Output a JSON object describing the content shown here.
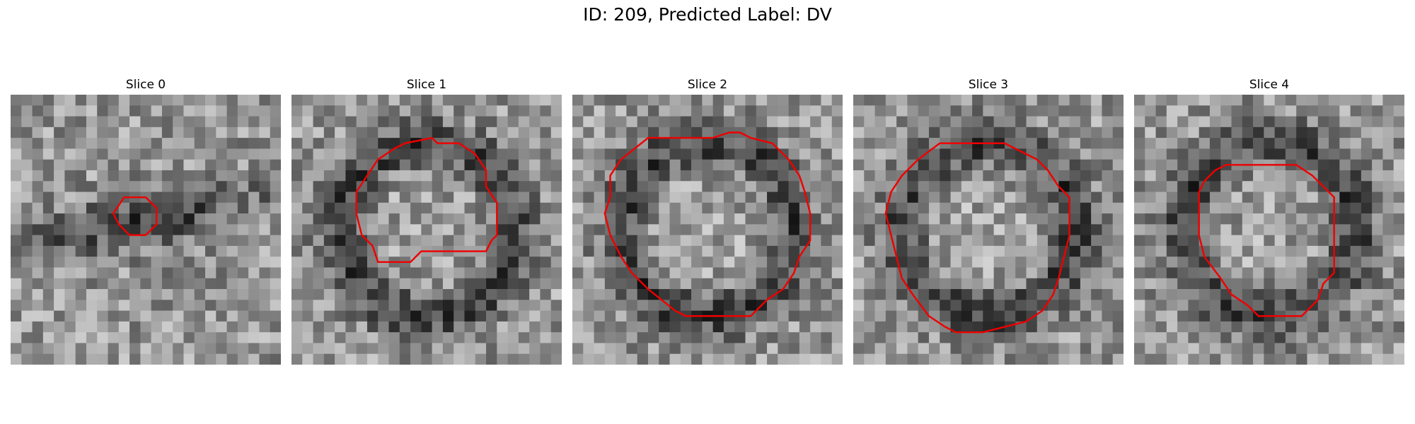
{
  "figure": {
    "title": "ID: 209, Predicted Label: DV"
  },
  "panels": [
    {
      "title": "Slice 0",
      "seed": 11,
      "contour": "darkband",
      "shape": [
        [
          10.5,
          9.5
        ],
        [
          12.5,
          9.5
        ],
        [
          13.5,
          10.5
        ],
        [
          13.5,
          12.0
        ],
        [
          12.5,
          13.0
        ],
        [
          11.0,
          13.0
        ],
        [
          10.0,
          12.0
        ],
        [
          9.5,
          11.0
        ]
      ]
    },
    {
      "title": "Slice 1",
      "seed": 23,
      "contour": "ring",
      "shape": [
        [
          10.5,
          4.5
        ],
        [
          13.0,
          4.0
        ],
        [
          13.5,
          4.5
        ],
        [
          15.5,
          4.5
        ],
        [
          17.0,
          5.5
        ],
        [
          18.0,
          7.0
        ],
        [
          18.0,
          8.5
        ],
        [
          19.0,
          10.0
        ],
        [
          19.0,
          13.0
        ],
        [
          18.5,
          13.5
        ],
        [
          18.0,
          14.5
        ],
        [
          12.0,
          14.5
        ],
        [
          11.5,
          15.0
        ],
        [
          11.0,
          15.5
        ],
        [
          8.0,
          15.5
        ],
        [
          7.5,
          14.0
        ],
        [
          6.5,
          13.0
        ],
        [
          6.0,
          11.0
        ],
        [
          6.0,
          9.0
        ],
        [
          7.0,
          7.5
        ],
        [
          8.0,
          6.0
        ],
        [
          9.5,
          5.0
        ]
      ]
    },
    {
      "title": "Slice 2",
      "seed": 37,
      "contour": "ring",
      "shape": [
        [
          9.5,
          4.0
        ],
        [
          13.0,
          4.0
        ],
        [
          14.5,
          3.5
        ],
        [
          15.5,
          3.5
        ],
        [
          16.5,
          4.0
        ],
        [
          18.5,
          4.5
        ],
        [
          20.0,
          6.0
        ],
        [
          21.0,
          7.5
        ],
        [
          21.5,
          9.0
        ],
        [
          22.0,
          11.0
        ],
        [
          22.0,
          13.5
        ],
        [
          21.0,
          15.0
        ],
        [
          20.5,
          16.5
        ],
        [
          19.5,
          18.0
        ],
        [
          18.0,
          19.0
        ],
        [
          16.5,
          20.5
        ],
        [
          10.5,
          20.5
        ],
        [
          9.5,
          20.0
        ],
        [
          7.0,
          18.0
        ],
        [
          5.5,
          16.5
        ],
        [
          4.5,
          15.0
        ],
        [
          3.5,
          13.0
        ],
        [
          3.0,
          11.0
        ],
        [
          3.5,
          9.5
        ],
        [
          3.5,
          7.5
        ],
        [
          4.5,
          6.0
        ],
        [
          7.0,
          4.0
        ]
      ]
    },
    {
      "title": "Slice 3",
      "seed": 53,
      "contour": "ring",
      "shape": [
        [
          8.0,
          4.5
        ],
        [
          14.0,
          4.5
        ],
        [
          15.0,
          5.0
        ],
        [
          17.0,
          6.0
        ],
        [
          18.0,
          7.0
        ],
        [
          19.0,
          8.5
        ],
        [
          20.0,
          9.5
        ],
        [
          20.0,
          13.0
        ],
        [
          19.5,
          15.0
        ],
        [
          19.0,
          17.0
        ],
        [
          18.5,
          18.5
        ],
        [
          17.5,
          20.0
        ],
        [
          16.0,
          21.0
        ],
        [
          14.0,
          21.5
        ],
        [
          12.0,
          22.0
        ],
        [
          9.5,
          22.0
        ],
        [
          8.5,
          21.5
        ],
        [
          7.0,
          20.5
        ],
        [
          5.5,
          18.5
        ],
        [
          4.5,
          17.0
        ],
        [
          4.0,
          15.0
        ],
        [
          3.5,
          13.0
        ],
        [
          3.0,
          11.0
        ],
        [
          3.5,
          9.0
        ],
        [
          4.5,
          7.5
        ],
        [
          6.0,
          6.0
        ]
      ]
    },
    {
      "title": "Slice 4",
      "seed": 71,
      "contour": "ring",
      "shape": [
        [
          8.5,
          6.5
        ],
        [
          15.0,
          6.5
        ],
        [
          16.5,
          7.5
        ],
        [
          17.5,
          8.5
        ],
        [
          18.5,
          9.5
        ],
        [
          18.5,
          16.5
        ],
        [
          17.5,
          17.5
        ],
        [
          17.0,
          19.0
        ],
        [
          15.5,
          20.5
        ],
        [
          11.5,
          20.5
        ],
        [
          10.5,
          19.5
        ],
        [
          9.0,
          18.5
        ],
        [
          8.0,
          17.0
        ],
        [
          6.5,
          15.0
        ],
        [
          6.0,
          13.0
        ],
        [
          6.0,
          9.0
        ],
        [
          6.5,
          8.0
        ],
        [
          7.5,
          7.0
        ]
      ]
    }
  ]
}
